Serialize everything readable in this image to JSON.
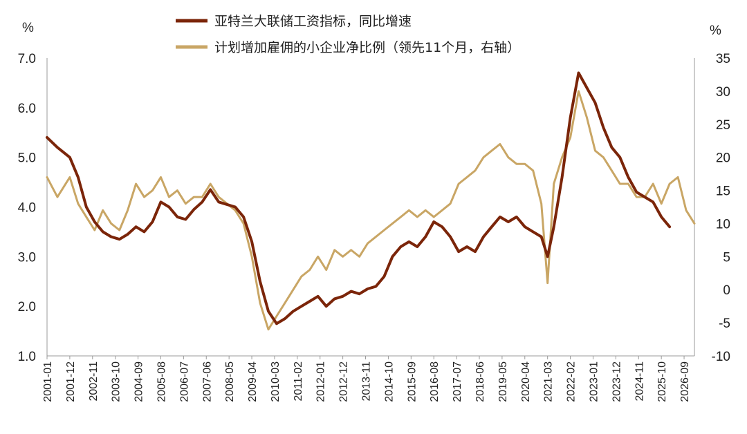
{
  "chart_data": {
    "type": "line",
    "left_unit": "%",
    "right_unit": "%",
    "ylim_left": [
      1.0,
      7.0
    ],
    "ylim_right": [
      -10,
      35
    ],
    "left_ticks": [
      "7.0",
      "6.0",
      "5.0",
      "4.0",
      "3.0",
      "2.0",
      "1.0"
    ],
    "right_ticks": [
      "35",
      "30",
      "25",
      "20",
      "15",
      "10",
      "5",
      "0",
      "-5",
      "-10"
    ],
    "x_ticks": [
      "2001-01",
      "2001-12",
      "2002-11",
      "2003-10",
      "2004-09",
      "2005-08",
      "2006-07",
      "2007-06",
      "2008-05",
      "2009-04",
      "2010-03",
      "2011-02",
      "2012-01",
      "2012-12",
      "2013-11",
      "2014-10",
      "2015-09",
      "2016-08",
      "2017-07",
      "2018-06",
      "2019-05",
      "2020-04",
      "2021-03",
      "2022-02",
      "2023-01",
      "2023-12",
      "2024-11",
      "2025-10",
      "2026-09"
    ],
    "x_range": [
      "2001-01",
      "2027-02"
    ],
    "grid": false,
    "legend_position": "top",
    "series": [
      {
        "name": "亚特兰大联储工资指标，同比增速",
        "axis": "left",
        "color": "#7b2509",
        "points": [
          [
            "2001-01",
            5.4
          ],
          [
            "2001-06",
            5.2
          ],
          [
            "2001-12",
            5.0
          ],
          [
            "2002-04",
            4.6
          ],
          [
            "2002-08",
            4.0
          ],
          [
            "2002-12",
            3.7
          ],
          [
            "2003-04",
            3.5
          ],
          [
            "2003-08",
            3.4
          ],
          [
            "2003-12",
            3.35
          ],
          [
            "2004-04",
            3.45
          ],
          [
            "2004-08",
            3.6
          ],
          [
            "2004-12",
            3.5
          ],
          [
            "2005-04",
            3.7
          ],
          [
            "2005-08",
            4.1
          ],
          [
            "2005-12",
            4.0
          ],
          [
            "2006-04",
            3.8
          ],
          [
            "2006-08",
            3.75
          ],
          [
            "2006-12",
            3.95
          ],
          [
            "2007-04",
            4.1
          ],
          [
            "2007-08",
            4.35
          ],
          [
            "2007-12",
            4.1
          ],
          [
            "2008-04",
            4.05
          ],
          [
            "2008-08",
            4.0
          ],
          [
            "2008-12",
            3.8
          ],
          [
            "2009-04",
            3.3
          ],
          [
            "2009-08",
            2.5
          ],
          [
            "2009-12",
            1.9
          ],
          [
            "2010-04",
            1.65
          ],
          [
            "2010-08",
            1.75
          ],
          [
            "2010-12",
            1.9
          ],
          [
            "2011-04",
            2.0
          ],
          [
            "2011-08",
            2.1
          ],
          [
            "2011-12",
            2.2
          ],
          [
            "2012-04",
            2.0
          ],
          [
            "2012-08",
            2.15
          ],
          [
            "2012-12",
            2.2
          ],
          [
            "2013-04",
            2.3
          ],
          [
            "2013-08",
            2.25
          ],
          [
            "2013-12",
            2.35
          ],
          [
            "2014-04",
            2.4
          ],
          [
            "2014-08",
            2.6
          ],
          [
            "2014-12",
            3.0
          ],
          [
            "2015-04",
            3.2
          ],
          [
            "2015-08",
            3.3
          ],
          [
            "2015-12",
            3.2
          ],
          [
            "2016-04",
            3.4
          ],
          [
            "2016-08",
            3.7
          ],
          [
            "2016-12",
            3.6
          ],
          [
            "2017-04",
            3.4
          ],
          [
            "2017-08",
            3.1
          ],
          [
            "2017-12",
            3.2
          ],
          [
            "2018-04",
            3.1
          ],
          [
            "2018-08",
            3.4
          ],
          [
            "2018-12",
            3.6
          ],
          [
            "2019-04",
            3.8
          ],
          [
            "2019-08",
            3.7
          ],
          [
            "2019-12",
            3.8
          ],
          [
            "2020-04",
            3.6
          ],
          [
            "2020-08",
            3.5
          ],
          [
            "2020-12",
            3.4
          ],
          [
            "2021-03",
            3.0
          ],
          [
            "2021-06",
            3.6
          ],
          [
            "2021-10",
            4.6
          ],
          [
            "2022-02",
            5.8
          ],
          [
            "2022-06",
            6.7
          ],
          [
            "2022-10",
            6.4
          ],
          [
            "2023-02",
            6.1
          ],
          [
            "2023-06",
            5.6
          ],
          [
            "2023-10",
            5.2
          ],
          [
            "2024-02",
            5.0
          ],
          [
            "2024-06",
            4.6
          ],
          [
            "2024-10",
            4.3
          ],
          [
            "2025-02",
            4.2
          ],
          [
            "2025-06",
            4.1
          ],
          [
            "2025-10",
            3.8
          ],
          [
            "2026-02",
            3.6
          ]
        ]
      },
      {
        "name": "计划增加雇佣的小企业净比例（领先11个月，右轴）",
        "axis": "right",
        "color": "#c9a665",
        "points": [
          [
            "2001-01",
            17
          ],
          [
            "2001-06",
            14
          ],
          [
            "2001-12",
            17
          ],
          [
            "2002-04",
            13
          ],
          [
            "2002-08",
            11
          ],
          [
            "2002-12",
            9
          ],
          [
            "2003-04",
            12
          ],
          [
            "2003-08",
            10
          ],
          [
            "2003-12",
            9
          ],
          [
            "2004-04",
            12
          ],
          [
            "2004-08",
            16
          ],
          [
            "2004-12",
            14
          ],
          [
            "2005-04",
            15
          ],
          [
            "2005-08",
            17
          ],
          [
            "2005-12",
            14
          ],
          [
            "2006-04",
            15
          ],
          [
            "2006-08",
            13
          ],
          [
            "2006-12",
            14
          ],
          [
            "2007-04",
            14
          ],
          [
            "2007-08",
            16
          ],
          [
            "2007-12",
            14
          ],
          [
            "2008-04",
            13
          ],
          [
            "2008-08",
            12
          ],
          [
            "2008-12",
            10
          ],
          [
            "2009-04",
            5
          ],
          [
            "2009-08",
            -2
          ],
          [
            "2009-12",
            -6
          ],
          [
            "2010-04",
            -4
          ],
          [
            "2010-08",
            -2
          ],
          [
            "2010-12",
            0
          ],
          [
            "2011-04",
            2
          ],
          [
            "2011-08",
            3
          ],
          [
            "2011-12",
            5
          ],
          [
            "2012-04",
            3
          ],
          [
            "2012-08",
            6
          ],
          [
            "2012-12",
            5
          ],
          [
            "2013-04",
            6
          ],
          [
            "2013-08",
            5
          ],
          [
            "2013-12",
            7
          ],
          [
            "2014-04",
            8
          ],
          [
            "2014-08",
            9
          ],
          [
            "2014-12",
            10
          ],
          [
            "2015-04",
            11
          ],
          [
            "2015-08",
            12
          ],
          [
            "2015-12",
            11
          ],
          [
            "2016-04",
            12
          ],
          [
            "2016-08",
            11
          ],
          [
            "2016-12",
            12
          ],
          [
            "2017-04",
            13
          ],
          [
            "2017-08",
            16
          ],
          [
            "2017-12",
            17
          ],
          [
            "2018-04",
            18
          ],
          [
            "2018-08",
            20
          ],
          [
            "2018-12",
            21
          ],
          [
            "2019-04",
            22
          ],
          [
            "2019-08",
            20
          ],
          [
            "2019-12",
            19
          ],
          [
            "2020-04",
            19
          ],
          [
            "2020-08",
            18
          ],
          [
            "2020-12",
            13
          ],
          [
            "2021-03",
            1
          ],
          [
            "2021-06",
            16
          ],
          [
            "2021-10",
            20
          ],
          [
            "2022-02",
            23
          ],
          [
            "2022-06",
            30
          ],
          [
            "2022-10",
            26
          ],
          [
            "2023-02",
            21
          ],
          [
            "2023-06",
            20
          ],
          [
            "2023-10",
            18
          ],
          [
            "2024-02",
            16
          ],
          [
            "2024-06",
            16
          ],
          [
            "2024-10",
            14
          ],
          [
            "2025-02",
            14
          ],
          [
            "2025-06",
            16
          ],
          [
            "2025-10",
            13
          ],
          [
            "2026-02",
            16
          ],
          [
            "2026-06",
            17
          ],
          [
            "2026-10",
            12
          ],
          [
            "2027-02",
            10
          ]
        ]
      }
    ]
  }
}
